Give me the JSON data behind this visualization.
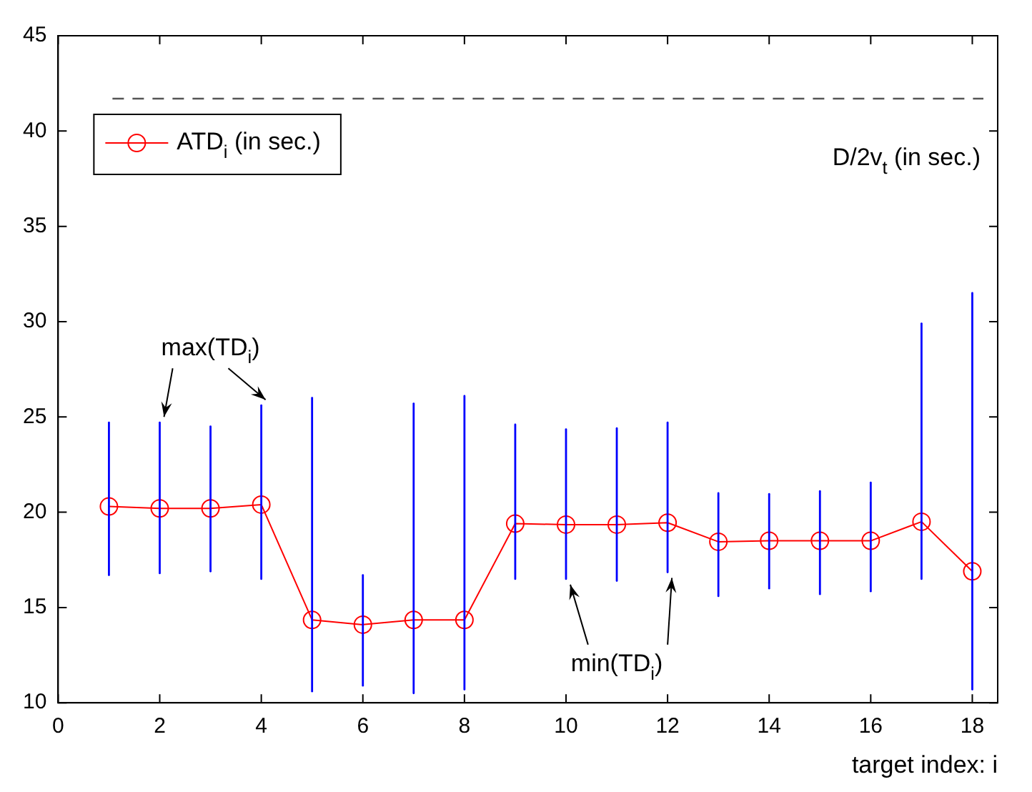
{
  "chart_data": {
    "type": "line",
    "xlabel": "target index: i",
    "x": [
      1,
      2,
      3,
      4,
      5,
      6,
      7,
      8,
      9,
      10,
      11,
      12,
      13,
      14,
      15,
      16,
      17,
      18
    ],
    "series": [
      {
        "name": "ATD$_{i}$ (in sec.)",
        "color": "#ff0000",
        "values": [
          20.3,
          20.2,
          20.2,
          20.4,
          14.35,
          14.1,
          14.35,
          14.35,
          19.4,
          19.35,
          19.35,
          19.45,
          18.45,
          18.5,
          18.5,
          18.5,
          19.5,
          16.9
        ],
        "errors": [
          [
            16.7,
            24.7
          ],
          [
            16.8,
            24.7
          ],
          [
            16.9,
            24.5
          ],
          [
            16.5,
            25.6
          ],
          [
            10.6,
            26.0
          ],
          [
            10.9,
            16.7
          ],
          [
            10.5,
            25.7
          ],
          [
            10.7,
            26.1
          ],
          [
            16.5,
            24.6
          ],
          [
            16.5,
            24.35
          ],
          [
            16.4,
            24.4
          ],
          [
            16.85,
            24.7
          ],
          [
            15.6,
            21.0
          ],
          [
            16.0,
            20.95
          ],
          [
            15.7,
            21.1
          ],
          [
            15.85,
            21.55
          ],
          [
            16.5,
            29.9
          ],
          [
            10.7,
            31.5
          ]
        ]
      }
    ],
    "xlim": [
      0,
      18.5
    ],
    "xticks": [
      0,
      2,
      4,
      6,
      8,
      10,
      12,
      14,
      16,
      18
    ],
    "ylim": [
      10,
      45
    ],
    "yticks": [
      10,
      15,
      20,
      25,
      30,
      35,
      40,
      45
    ],
    "ref_lines": [
      {
        "axis": "y",
        "value": 41.7,
        "label": "D/2v$_{t}$ (in sec.)",
        "color": "#555555",
        "line_style": "dashed"
      }
    ],
    "annotations": [
      "max(TD$_{i}$)",
      "min(TD$_{i}$)"
    ],
    "marker": "circle",
    "legend": "top left",
    "grid": false
  }
}
